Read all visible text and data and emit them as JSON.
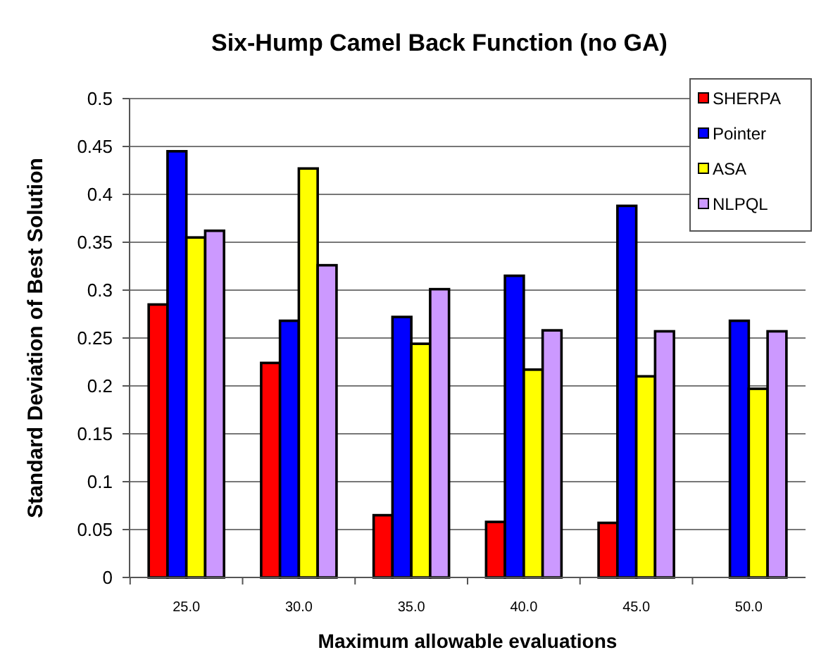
{
  "chart_data": {
    "type": "bar",
    "title": "Six-Hump Camel Back Function (no GA)",
    "xlabel": "Maximum allowable evaluations",
    "ylabel": "Standard Deviation of Best Solution",
    "categories": [
      "25.0",
      "30.0",
      "35.0",
      "40.0",
      "45.0",
      "50.0"
    ],
    "series": [
      {
        "name": "SHERPA",
        "color": "#ff0000",
        "values": [
          0.285,
          0.224,
          0.065,
          0.058,
          0.057,
          0
        ]
      },
      {
        "name": "Pointer",
        "color": "#0000ff",
        "values": [
          0.445,
          0.268,
          0.272,
          0.315,
          0.388,
          0.268
        ]
      },
      {
        "name": "ASA",
        "color": "#ffff00",
        "values": [
          0.355,
          0.427,
          0.244,
          0.217,
          0.21,
          0.197
        ]
      },
      {
        "name": "NLPQL",
        "color": "#cc99ff",
        "values": [
          0.362,
          0.326,
          0.301,
          0.258,
          0.257,
          0.257
        ]
      }
    ],
    "ylim": [
      0,
      0.5
    ],
    "yticks": [
      0,
      0.05,
      0.1,
      0.15,
      0.2,
      0.25,
      0.3,
      0.35,
      0.4,
      0.45,
      0.5
    ],
    "grid": "y",
    "legend": "top right"
  }
}
